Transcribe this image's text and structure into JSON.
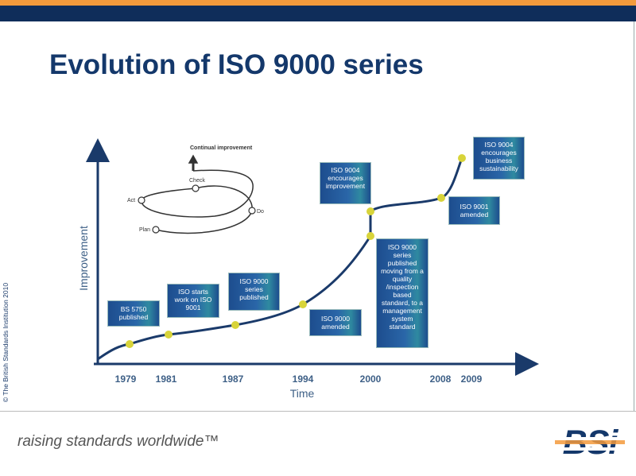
{
  "header": {
    "title": "Evolution of ISO 9000 series"
  },
  "side_note": "© The British Standards Institution 2010",
  "diagram": {
    "y_axis_label": "Improvement",
    "x_axis_label": "Time",
    "years": [
      "1979",
      "1981",
      "1987",
      "1994",
      "2000",
      "2008",
      "2009"
    ],
    "milestones": [
      {
        "text": "BS 5750 published"
      },
      {
        "text": "ISO starts work on ISO 9001"
      },
      {
        "text": "ISO 9000 series published"
      },
      {
        "text": "ISO 9000 amended"
      },
      {
        "text": "ISO 9004 encourages improvement"
      },
      {
        "text": "ISO 9000 series published moving from a quality /inspection based standard, to a management system standard"
      },
      {
        "text": "ISO 9001 amended"
      },
      {
        "text": "ISO 9004 encourages business sustainability"
      }
    ],
    "cycle": {
      "label": "Continual improvement",
      "steps": [
        "Check",
        "Act",
        "Do",
        "Plan"
      ]
    }
  },
  "footer": {
    "tagline": "raising standards worldwide™",
    "logo": "BSi"
  }
}
